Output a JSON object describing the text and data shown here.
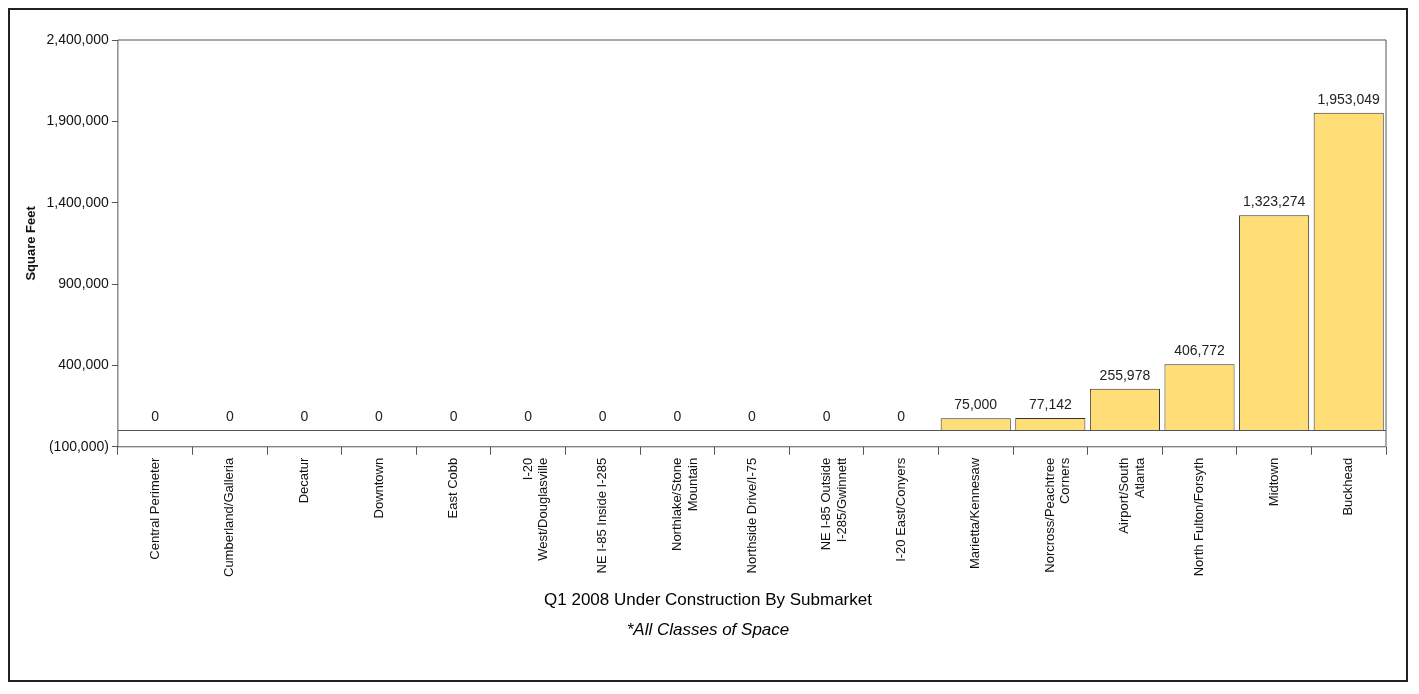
{
  "chart_data": {
    "type": "bar",
    "title": "Q1 2008 Under Construction By Submarket",
    "subtitle": "*All Classes of Space",
    "ylabel": "Square Feet",
    "categories": [
      "Central Perimeter",
      "Cumberland/Galleria",
      "Decatur",
      "Downtown",
      "East Cobb",
      "I-20 West/Douglasville",
      "NE I-85 Inside I-285",
      "Northlake/Stone Mountain",
      "Northside Drive/I-75",
      "NE I-85 Outside I-285/Gwinnett",
      "I-20 East/Conyers",
      "Marietta/Kennesaw",
      "Norcross/Peachtree Corners",
      "Airport/South Atlanta",
      "North Fulton/Forsyth",
      "Midtown",
      "Buckhead"
    ],
    "values": [
      0,
      0,
      0,
      0,
      0,
      0,
      0,
      0,
      0,
      0,
      0,
      75000,
      77142,
      255978,
      406772,
      1323274,
      1953049
    ],
    "value_labels": [
      "0",
      "0",
      "0",
      "0",
      "0",
      "0",
      "0",
      "0",
      "0",
      "0",
      "0",
      "75,000",
      "77,142",
      "255,978",
      "406,772",
      "1,323,274",
      "1,953,049"
    ],
    "color": "#ffdd77",
    "ylim": [
      -100000,
      2400000
    ],
    "yticks": [
      {
        "value": -100000,
        "label": "(100,000)"
      },
      {
        "value": 400000,
        "label": "400,000"
      },
      {
        "value": 900000,
        "label": "900,000"
      },
      {
        "value": 1400000,
        "label": "1,400,000"
      },
      {
        "value": 1900000,
        "label": "1,900,000"
      },
      {
        "value": 2400000,
        "label": "2,400,000"
      }
    ],
    "grid": false,
    "legend": false
  }
}
